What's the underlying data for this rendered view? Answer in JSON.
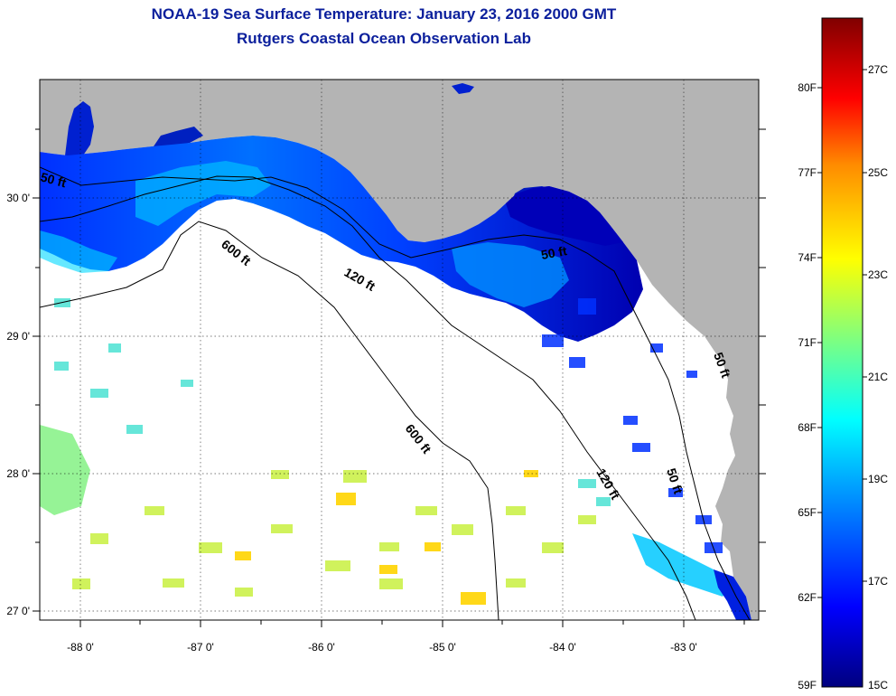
{
  "title": {
    "line1": "NOAA-19 Sea Surface Temperature:  January 23, 2016 2000 GMT",
    "line2": "Rutgers Coastal Ocean Observation Lab"
  },
  "axes": {
    "lon_ticks": [
      "-88 0'",
      "-87 0'",
      "-86 0'",
      "-85 0'",
      "-84 0'",
      "-83 0'"
    ],
    "lat_ticks": [
      "30 0'",
      "29 0'",
      "28 0'",
      "27 0'"
    ]
  },
  "contours": {
    "c50": "50 ft",
    "c120": "120 ft",
    "c600": "600 ft"
  },
  "colorbar": {
    "f_labels": [
      "80F",
      "77F",
      "74F",
      "71F",
      "68F",
      "65F",
      "62F",
      "59F"
    ],
    "c_labels": [
      "27C",
      "25C",
      "23C",
      "21C",
      "19C",
      "17C",
      "15C"
    ]
  },
  "colors": {
    "land": "#b4b4b4",
    "title": "#0b1f9c"
  }
}
